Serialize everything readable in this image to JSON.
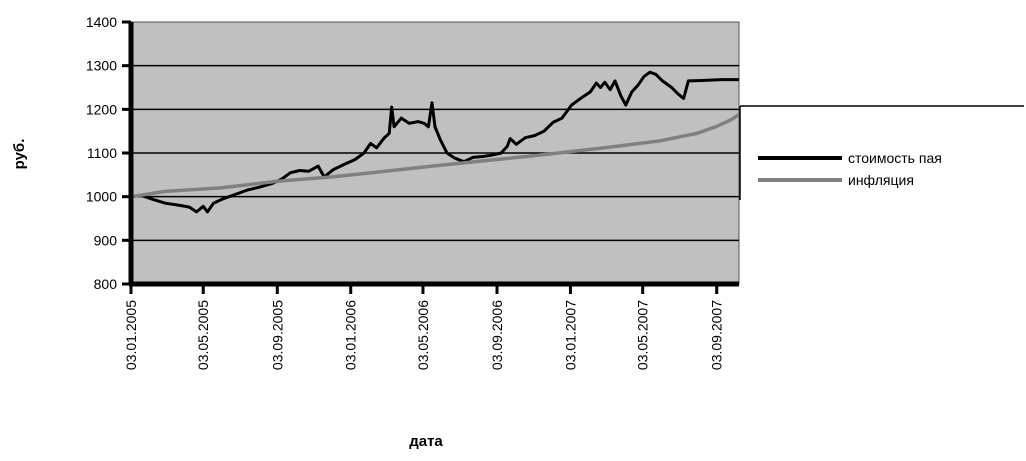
{
  "chart_data": {
    "type": "line",
    "title": "",
    "xlabel": "дата",
    "ylabel": "руб.",
    "ylim": [
      800,
      1400
    ],
    "yticks": [
      "800",
      "900",
      "1000",
      "1100",
      "1200",
      "1300",
      "1400"
    ],
    "ytick_values": [
      800,
      900,
      1000,
      1100,
      1200,
      1300,
      1400
    ],
    "xlim": [
      "2005-01-03",
      "2007-10-10"
    ],
    "xticks": [
      "03.01.2005",
      "03.05.2005",
      "03.09.2005",
      "03.01.2006",
      "03.05.2006",
      "03.09.2006",
      "03.01.2007",
      "03.05.2007",
      "03.09.2007"
    ],
    "xtick_dates": [
      "2005-01-03",
      "2005-05-03",
      "2005-09-03",
      "2006-01-03",
      "2006-05-03",
      "2006-09-03",
      "2007-01-03",
      "2007-05-03",
      "2007-09-03"
    ],
    "grid": "horizontal",
    "legend_position": "right",
    "plot_background": "#c0c0c0",
    "series": [
      {
        "name": "стоимость пая",
        "color": "#000000",
        "points": [
          [
            "2005-01-03",
            1000
          ],
          [
            "2005-01-20",
            1003
          ],
          [
            "2005-02-10",
            993
          ],
          [
            "2005-03-01",
            985
          ],
          [
            "2005-03-25",
            980
          ],
          [
            "2005-04-10",
            976
          ],
          [
            "2005-04-22",
            965
          ],
          [
            "2005-05-03",
            978
          ],
          [
            "2005-05-10",
            965
          ],
          [
            "2005-05-20",
            985
          ],
          [
            "2005-06-05",
            995
          ],
          [
            "2005-06-25",
            1005
          ],
          [
            "2005-07-15",
            1015
          ],
          [
            "2005-08-05",
            1022
          ],
          [
            "2005-08-25",
            1030
          ],
          [
            "2005-09-10",
            1040
          ],
          [
            "2005-09-25",
            1055
          ],
          [
            "2005-10-10",
            1060
          ],
          [
            "2005-10-25",
            1058
          ],
          [
            "2005-11-10",
            1070
          ],
          [
            "2005-11-20",
            1045
          ],
          [
            "2005-12-05",
            1062
          ],
          [
            "2005-12-25",
            1075
          ],
          [
            "2006-01-10",
            1085
          ],
          [
            "2006-01-25",
            1100
          ],
          [
            "2006-02-05",
            1122
          ],
          [
            "2006-02-15",
            1112
          ],
          [
            "2006-02-28",
            1135
          ],
          [
            "2006-03-08",
            1145
          ],
          [
            "2006-03-12",
            1205
          ],
          [
            "2006-03-16",
            1160
          ],
          [
            "2006-03-28",
            1180
          ],
          [
            "2006-04-10",
            1168
          ],
          [
            "2006-04-25",
            1172
          ],
          [
            "2006-05-05",
            1168
          ],
          [
            "2006-05-12",
            1160
          ],
          [
            "2006-05-18",
            1215
          ],
          [
            "2006-05-23",
            1160
          ],
          [
            "2006-06-01",
            1130
          ],
          [
            "2006-06-12",
            1100
          ],
          [
            "2006-06-25",
            1088
          ],
          [
            "2006-07-10",
            1080
          ],
          [
            "2006-07-25",
            1090
          ],
          [
            "2006-08-10",
            1092
          ],
          [
            "2006-08-25",
            1095
          ],
          [
            "2006-09-10",
            1100
          ],
          [
            "2006-09-20",
            1115
          ],
          [
            "2006-09-25",
            1133
          ],
          [
            "2006-10-05",
            1120
          ],
          [
            "2006-10-20",
            1135
          ],
          [
            "2006-11-05",
            1140
          ],
          [
            "2006-11-20",
            1150
          ],
          [
            "2006-12-05",
            1170
          ],
          [
            "2006-12-20",
            1180
          ],
          [
            "2007-01-05",
            1210
          ],
          [
            "2007-01-20",
            1225
          ],
          [
            "2007-02-05",
            1240
          ],
          [
            "2007-02-15",
            1260
          ],
          [
            "2007-02-22",
            1250
          ],
          [
            "2007-03-01",
            1262
          ],
          [
            "2007-03-10",
            1245
          ],
          [
            "2007-03-18",
            1265
          ],
          [
            "2007-03-28",
            1230
          ],
          [
            "2007-04-05",
            1210
          ],
          [
            "2007-04-15",
            1240
          ],
          [
            "2007-04-25",
            1255
          ],
          [
            "2007-05-05",
            1275
          ],
          [
            "2007-05-15",
            1285
          ],
          [
            "2007-05-25",
            1280
          ],
          [
            "2007-06-05",
            1265
          ],
          [
            "2007-06-20",
            1250
          ],
          [
            "2007-07-01",
            1235
          ],
          [
            "2007-07-10",
            1225
          ],
          [
            "2007-07-18",
            1265
          ],
          [
            "2007-08-10",
            1266
          ],
          [
            "2007-09-10",
            1268
          ],
          [
            "2007-10-10",
            1268
          ]
        ]
      },
      {
        "name": "инфляция",
        "color": "#808080",
        "points": [
          [
            "2005-01-03",
            1000
          ],
          [
            "2005-03-01",
            1012
          ],
          [
            "2005-06-01",
            1020
          ],
          [
            "2005-09-01",
            1035
          ],
          [
            "2005-12-01",
            1045
          ],
          [
            "2006-03-01",
            1058
          ],
          [
            "2006-06-01",
            1072
          ],
          [
            "2006-09-01",
            1085
          ],
          [
            "2006-12-01",
            1098
          ],
          [
            "2007-03-01",
            1112
          ],
          [
            "2007-06-01",
            1128
          ],
          [
            "2007-08-01",
            1145
          ],
          [
            "2007-09-01",
            1160
          ],
          [
            "2007-09-25",
            1175
          ],
          [
            "2007-10-10",
            1188
          ]
        ]
      }
    ]
  }
}
